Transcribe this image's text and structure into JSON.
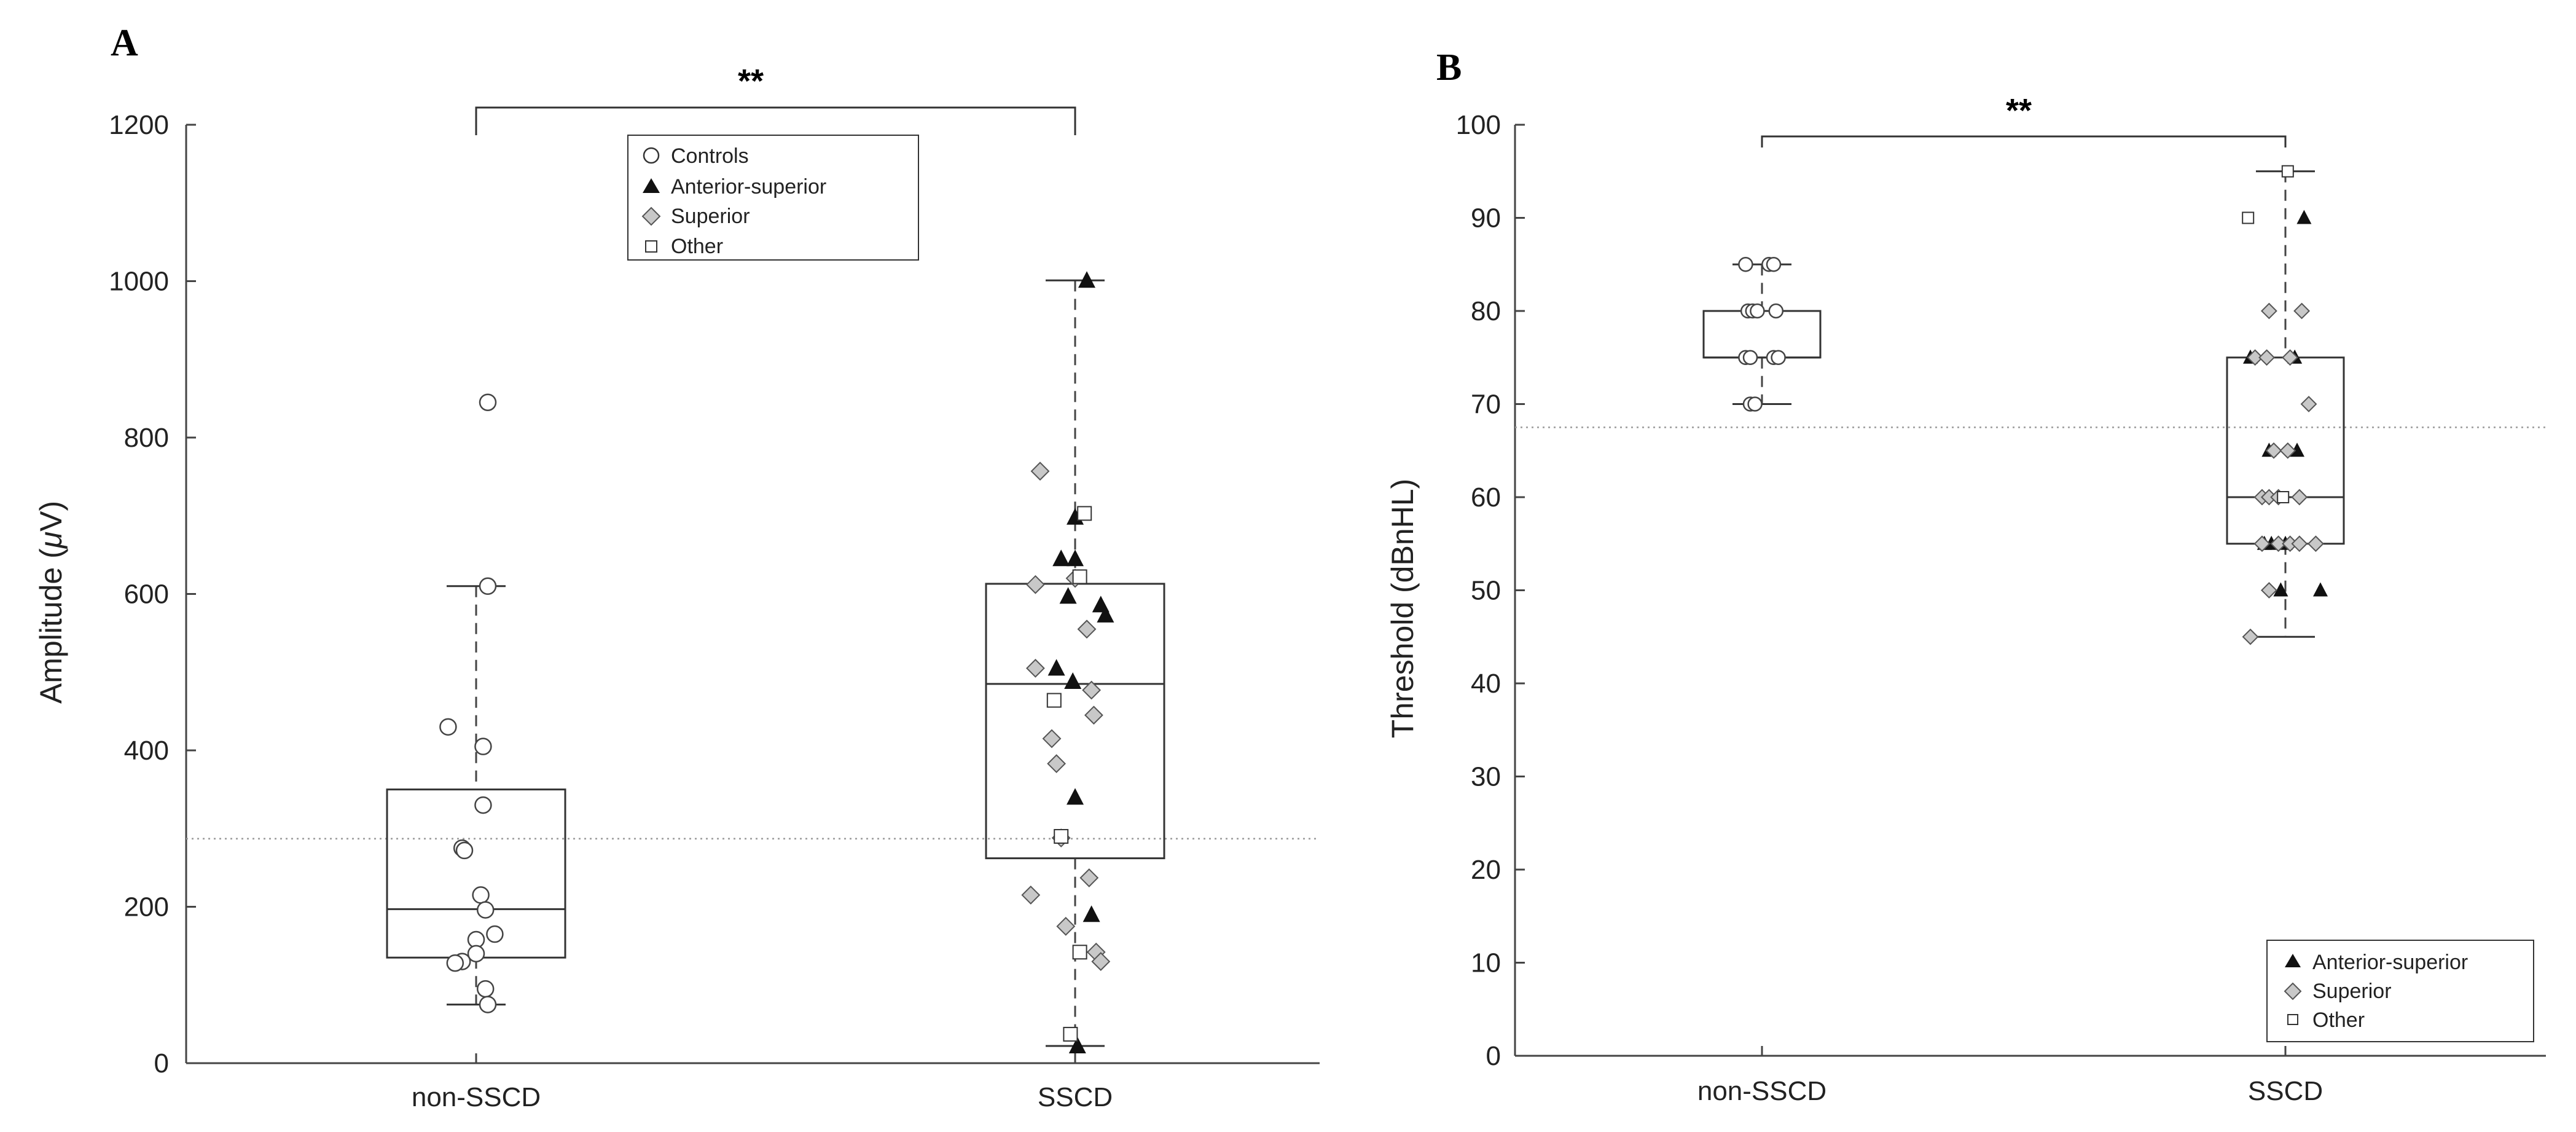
{
  "chart_data": [
    {
      "panel": "A",
      "type": "scatter",
      "subtype": "boxplot-with-jittered-points",
      "ylabel_prefix": "Amplitude (",
      "ylabel_symbol": "μ",
      "ylabel_suffix": "V)",
      "ylim": [
        0,
        1200
      ],
      "yticks": [
        0,
        200,
        400,
        600,
        800,
        1000,
        1200
      ],
      "categories": [
        "non-SSCD",
        "SSCD"
      ],
      "reference_line": 287,
      "significance": "**",
      "legend": [
        "Controls",
        "Anterior-superior",
        "Superior",
        "Other"
      ],
      "boxes": [
        {
          "category": "non-SSCD",
          "whisker_low": 75,
          "q1": 135,
          "median": 197,
          "q3": 350,
          "whisker_high": 610
        },
        {
          "category": "SSCD",
          "whisker_low": 22,
          "q1": 262,
          "median": 485,
          "q3": 613,
          "whisker_high": 1001
        }
      ],
      "series": [
        {
          "name": "Controls",
          "marker": "circle",
          "category": "non-SSCD",
          "points": [
            [
              0.05,
              845
            ],
            [
              0.05,
              610
            ],
            [
              -0.12,
              430
            ],
            [
              0.03,
              405
            ],
            [
              0.03,
              330
            ],
            [
              -0.06,
              275
            ],
            [
              -0.05,
              272
            ],
            [
              0.02,
              215
            ],
            [
              0.04,
              196
            ],
            [
              0.08,
              165
            ],
            [
              0.0,
              158
            ],
            [
              0.0,
              140
            ],
            [
              -0.06,
              130
            ],
            [
              -0.09,
              128
            ],
            [
              0.04,
              95
            ],
            [
              0.05,
              75
            ]
          ]
        },
        {
          "name": "Anterior-superior",
          "marker": "triangle",
          "category": "SSCD",
          "points": [
            [
              0.05,
              1001
            ],
            [
              0.0,
              698
            ],
            [
              -0.06,
              645
            ],
            [
              0.0,
              645
            ],
            [
              -0.03,
              597
            ],
            [
              0.11,
              586
            ],
            [
              0.13,
              573
            ],
            [
              -0.08,
              505
            ],
            [
              -0.01,
              488
            ],
            [
              0.0,
              340
            ],
            [
              0.07,
              190
            ],
            [
              0.01,
              22
            ]
          ]
        },
        {
          "name": "Superior",
          "marker": "diamond",
          "category": "SSCD",
          "points": [
            [
              -0.15,
              757
            ],
            [
              0.0,
              620
            ],
            [
              -0.17,
              612
            ],
            [
              0.05,
              555
            ],
            [
              -0.17,
              505
            ],
            [
              0.07,
              477
            ],
            [
              0.08,
              445
            ],
            [
              -0.1,
              415
            ],
            [
              -0.08,
              383
            ],
            [
              -0.06,
              288
            ],
            [
              0.06,
              237
            ],
            [
              -0.19,
              215
            ],
            [
              -0.04,
              175
            ],
            [
              0.09,
              142
            ],
            [
              0.11,
              130
            ]
          ]
        },
        {
          "name": "Other",
          "marker": "square",
          "category": "SSCD",
          "points": [
            [
              0.04,
              703
            ],
            [
              0.02,
              622
            ],
            [
              -0.09,
              464
            ],
            [
              -0.06,
              290
            ],
            [
              0.02,
              142
            ],
            [
              -0.02,
              37
            ]
          ]
        }
      ]
    },
    {
      "panel": "B",
      "type": "scatter",
      "subtype": "boxplot-with-jittered-points",
      "ylabel": "Threshold (dBnHL)",
      "ylim": [
        0,
        100
      ],
      "yticks": [
        0,
        10,
        20,
        30,
        40,
        50,
        60,
        70,
        80,
        90,
        100
      ],
      "categories": [
        "non-SSCD",
        "SSCD"
      ],
      "reference_line": 67.5,
      "significance": "**",
      "legend": [
        "Anterior-superior",
        "Superior",
        "Other"
      ],
      "boxes": [
        {
          "category": "non-SSCD",
          "whisker_low": 70,
          "q1": 75,
          "median": 75,
          "q3": 80,
          "whisker_high": 85
        },
        {
          "category": "SSCD",
          "whisker_low": 45,
          "q1": 55,
          "median": 60,
          "q3": 75,
          "whisker_high": 95
        }
      ],
      "series": [
        {
          "name": "non-SSCD",
          "marker": "circle",
          "category": "non-SSCD",
          "points": [
            [
              -0.07,
              85
            ],
            [
              0.03,
              85
            ],
            [
              0.05,
              85
            ],
            [
              -0.06,
              80
            ],
            [
              -0.04,
              80
            ],
            [
              -0.02,
              80
            ],
            [
              0.06,
              80
            ],
            [
              -0.07,
              75
            ],
            [
              -0.05,
              75
            ],
            [
              0.05,
              75
            ],
            [
              0.07,
              75
            ],
            [
              -0.05,
              70
            ],
            [
              -0.03,
              70
            ]
          ]
        },
        {
          "name": "Anterior-superior",
          "marker": "triangle",
          "category": "SSCD",
          "points": [
            [
              0.08,
              90
            ],
            [
              -0.15,
              75
            ],
            [
              0.04,
              75
            ],
            [
              -0.07,
              65
            ],
            [
              0.05,
              65
            ],
            [
              -0.09,
              55
            ],
            [
              -0.06,
              55
            ],
            [
              0.0,
              55
            ],
            [
              -0.02,
              50
            ],
            [
              0.15,
              50
            ]
          ]
        },
        {
          "name": "Superior",
          "marker": "diamond",
          "category": "SSCD",
          "points": [
            [
              -0.13,
              75
            ],
            [
              -0.08,
              75
            ],
            [
              0.02,
              75
            ],
            [
              -0.07,
              80
            ],
            [
              0.07,
              80
            ],
            [
              0.1,
              70
            ],
            [
              -0.05,
              65
            ],
            [
              0.01,
              65
            ],
            [
              -0.1,
              60
            ],
            [
              -0.07,
              60
            ],
            [
              -0.03,
              60
            ],
            [
              0.06,
              60
            ],
            [
              -0.03,
              55
            ],
            [
              0.02,
              55
            ],
            [
              0.06,
              55
            ],
            [
              0.13,
              55
            ],
            [
              -0.1,
              55
            ],
            [
              -0.07,
              50
            ],
            [
              -0.15,
              45
            ]
          ]
        },
        {
          "name": "Other",
          "marker": "square",
          "category": "SSCD",
          "points": [
            [
              0.01,
              95
            ],
            [
              -0.16,
              90
            ],
            [
              -0.01,
              60
            ]
          ]
        }
      ]
    }
  ]
}
